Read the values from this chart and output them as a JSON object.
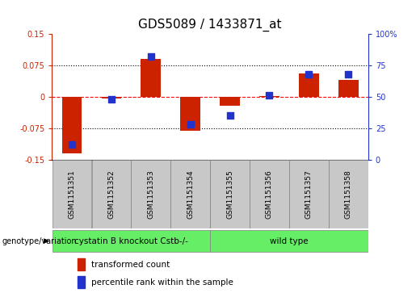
{
  "title": "GDS5089 / 1433871_at",
  "samples": [
    "GSM1151351",
    "GSM1151352",
    "GSM1151353",
    "GSM1151354",
    "GSM1151355",
    "GSM1151356",
    "GSM1151357",
    "GSM1151358"
  ],
  "transformed_count": [
    -0.135,
    -0.005,
    0.09,
    -0.082,
    -0.022,
    0.002,
    0.055,
    0.04
  ],
  "percentile_rank": [
    12,
    48,
    82,
    28,
    35,
    51,
    68,
    68
  ],
  "ylim_left": [
    -0.15,
    0.15
  ],
  "ylim_right": [
    0,
    100
  ],
  "yticks_left": [
    -0.15,
    -0.075,
    0,
    0.075,
    0.15
  ],
  "yticks_right": [
    0,
    25,
    50,
    75,
    100
  ],
  "ytick_labels_left": [
    "-0.15",
    "-0.075",
    "0",
    "0.075",
    "0.15"
  ],
  "ytick_labels_right": [
    "0",
    "25",
    "50",
    "75",
    "100%"
  ],
  "hlines": [
    0.075,
    0,
    -0.075
  ],
  "hline_styles": [
    "dotted",
    "dashed",
    "dotted"
  ],
  "hline_colors": [
    "black",
    "red",
    "black"
  ],
  "group_divider": 4,
  "group1_label": "cystatin B knockout Cstb-/-",
  "group2_label": "wild type",
  "group_color": "#66ee66",
  "genotype_label": "genotype/variation",
  "legend_transformed": "transformed count",
  "legend_percentile": "percentile rank within the sample",
  "bar_color": "#cc2200",
  "dot_color": "#2233cc",
  "bar_width": 0.5,
  "dot_size": 30,
  "bg_color_sample": "#c8c8c8",
  "left_axis_color": "#cc2200",
  "right_axis_color": "#2233cc",
  "title_fontsize": 11,
  "tick_fontsize": 7,
  "sample_fontsize": 6.5,
  "legend_fontsize": 7.5,
  "group_fontsize": 7.5
}
